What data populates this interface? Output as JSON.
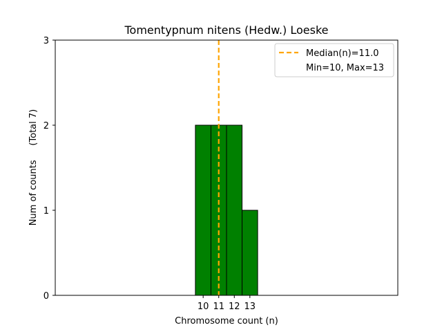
{
  "chart_data": {
    "type": "bar",
    "title": "Tomentypnum nitens (Hedw.) Loeske",
    "xlabel": "Chromosome count (n)",
    "ylabel": "Num of counts     (Total 7)",
    "x_ticks": [
      "10",
      "11",
      "12",
      "13"
    ],
    "y_ticks": [
      "0",
      "1",
      "2",
      "3"
    ],
    "ylim": [
      0,
      3
    ],
    "xlim": [
      0.5,
      22.5
    ],
    "bins": [
      {
        "x": 10,
        "value": 2
      },
      {
        "x": 11,
        "value": 2
      },
      {
        "x": 12,
        "value": 2
      },
      {
        "x": 13,
        "value": 1
      }
    ],
    "bar_color": "#008000",
    "bar_edge_color": "#000000",
    "median_line": {
      "x": 11.0,
      "color": "#FFA500",
      "style": "dashed"
    },
    "legend": {
      "position": "upper right",
      "entries": [
        "Median(n)=11.0",
        "Min=10, Max=13"
      ]
    },
    "grid": false
  }
}
